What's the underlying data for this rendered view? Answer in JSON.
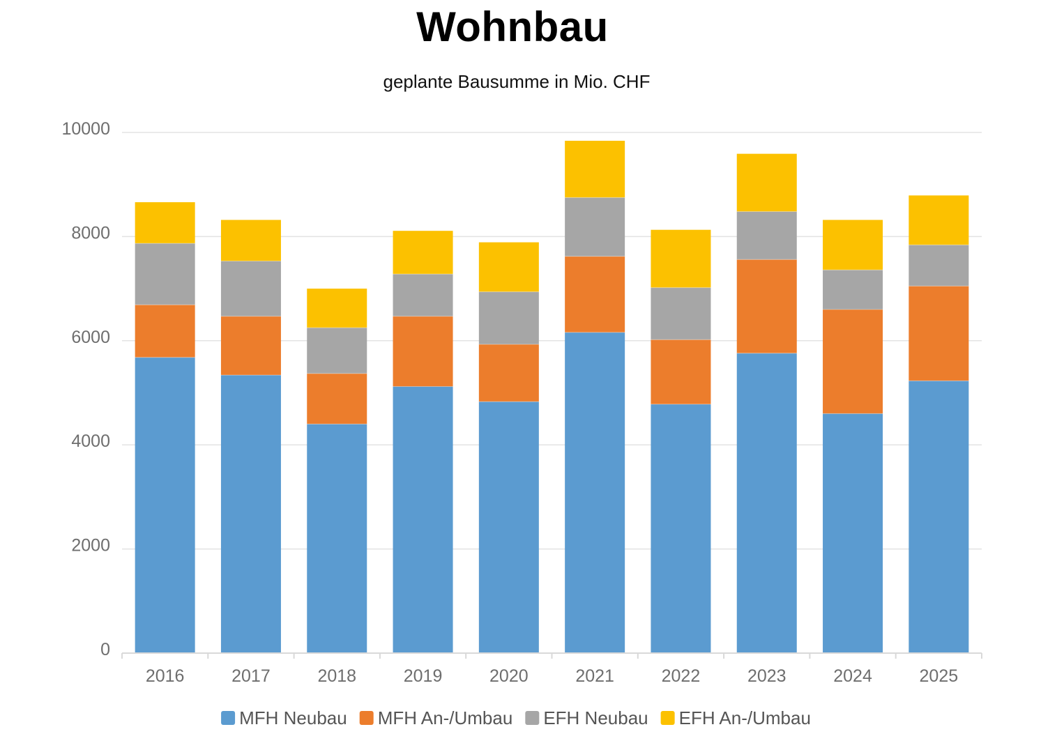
{
  "chart_data": {
    "type": "bar",
    "stacked": true,
    "title": "Wohnbau",
    "subtitle": "geplante Bausumme in Mio. CHF",
    "xlabel": "",
    "ylabel": "",
    "ylim": [
      0,
      10000
    ],
    "yticks": [
      "0",
      "2000",
      "4000",
      "6000",
      "8000",
      "10000"
    ],
    "grid": true,
    "legend_position": "bottom",
    "categories": [
      "2016",
      "2017",
      "2018",
      "2019",
      "2020",
      "2021",
      "2022",
      "2023",
      "2024",
      "2025"
    ],
    "series": [
      {
        "name": "MFH Neubau",
        "color": "#5b9bd0",
        "values": [
          5680,
          5340,
          4400,
          5120,
          4830,
          6160,
          4780,
          5760,
          4600,
          5230
        ]
      },
      {
        "name": "MFH An-/Umbau",
        "color": "#ec7d2c",
        "values": [
          1010,
          1130,
          970,
          1350,
          1100,
          1460,
          1240,
          1800,
          2000,
          1820
        ]
      },
      {
        "name": "EFH Neubau",
        "color": "#a6a6a6",
        "values": [
          1180,
          1060,
          880,
          810,
          1010,
          1130,
          1000,
          920,
          760,
          790
        ]
      },
      {
        "name": "EFH An-/Umbau",
        "color": "#fcc100",
        "values": [
          790,
          790,
          750,
          830,
          950,
          1090,
          1110,
          1110,
          960,
          950
        ]
      }
    ]
  },
  "colors": {
    "grid": "#e3e3e3",
    "axis": "#d9d9d9",
    "tick_text": "#6e6e6e",
    "legend_text": "#555555"
  }
}
